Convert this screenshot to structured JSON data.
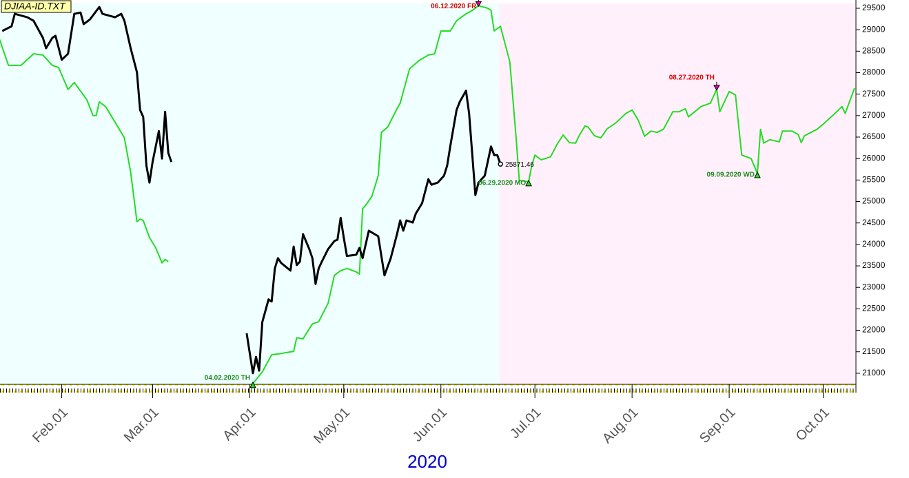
{
  "chart_data": {
    "type": "line",
    "title": "DJIAA-ID.TXT",
    "x_label": "2020",
    "xlim": [
      12.3,
      285
    ],
    "ylim": [
      20742,
      29692
    ],
    "xticks": [
      {
        "value": 32,
        "label": "Feb.01"
      },
      {
        "value": 61,
        "label": "Mar.01"
      },
      {
        "value": 92,
        "label": "Apr.01"
      },
      {
        "value": 122,
        "label": "May.01"
      },
      {
        "value": 153,
        "label": "Jun.01"
      },
      {
        "value": 183,
        "label": "Jul.01"
      },
      {
        "value": 214,
        "label": "Aug.01"
      },
      {
        "value": 245,
        "label": "Sep.01"
      },
      {
        "value": 275,
        "label": "Oct.01"
      }
    ],
    "yticks": [
      21000,
      21500,
      22000,
      22500,
      23000,
      23500,
      24000,
      24500,
      25000,
      25500,
      26000,
      26500,
      27000,
      27500,
      28000,
      28500,
      29000,
      29500
    ],
    "regions": [
      {
        "from": 12.3,
        "to": 171.6,
        "color": "#f0ffff"
      },
      {
        "from": 171.6,
        "to": 285,
        "color": "#fff0fb"
      }
    ],
    "series": [
      {
        "color": "#22dd22",
        "x": [
          12,
          15,
          19,
          23,
          26,
          29,
          31,
          34,
          36,
          40,
          42,
          43,
          44,
          46,
          50,
          52,
          54,
          56,
          57,
          58,
          60,
          62,
          64,
          65,
          66,
          80,
          93,
          96,
          99,
          102,
          106,
          107,
          109,
          112,
          114,
          117,
          119,
          121,
          123,
          126,
          127,
          128,
          129,
          131,
          133,
          134,
          136,
          139,
          140,
          143,
          146,
          149,
          151,
          153,
          156,
          158,
          161,
          163,
          165,
          168,
          169,
          170,
          172,
          175,
          177,
          178,
          181,
          182,
          183,
          185,
          188,
          190,
          192,
          194,
          196,
          197,
          199,
          200,
          202,
          204,
          206,
          209,
          212,
          214,
          216,
          218,
          220,
          222,
          224,
          227,
          229,
          231,
          232,
          234,
          236,
          239,
          241,
          242,
          245,
          247,
          249,
          252,
          254,
          255,
          256,
          258,
          261,
          262,
          265,
          267,
          268,
          269,
          273,
          275,
          278,
          281,
          282,
          285
        ],
        "values": [
          28810,
          28170,
          28170,
          28440,
          28410,
          28170,
          28120,
          27610,
          27770,
          27370,
          27000,
          27000,
          27320,
          27210,
          26730,
          26480,
          25680,
          24530,
          24590,
          24560,
          24160,
          23920,
          23570,
          23650,
          23600,
          null,
          20760,
          21030,
          21430,
          21460,
          21510,
          21830,
          21800,
          22150,
          22200,
          22630,
          23280,
          23390,
          23440,
          23360,
          23310,
          24830,
          24910,
          25120,
          25600,
          26610,
          26730,
          27160,
          27290,
          28090,
          28280,
          28410,
          28440,
          28970,
          28970,
          29210,
          29370,
          29450,
          29560,
          29500,
          29450,
          28970,
          29080,
          28250,
          26480,
          25490,
          25460,
          25840,
          26080,
          25970,
          26040,
          26320,
          26550,
          26370,
          26360,
          26520,
          26760,
          26730,
          26530,
          26480,
          26690,
          26840,
          27050,
          27130,
          26890,
          26520,
          26640,
          26610,
          26680,
          27090,
          27090,
          27160,
          26970,
          27090,
          27210,
          27290,
          27610,
          27090,
          27560,
          27480,
          26080,
          26000,
          25650,
          26680,
          26360,
          26440,
          26390,
          26640,
          26640,
          26560,
          26370,
          26530,
          26680,
          26800,
          27000,
          27210,
          27050,
          27640
        ]
      },
      {
        "color": "#000000",
        "x": [
          13,
          16,
          17,
          21,
          23,
          26,
          27,
          29,
          30,
          32,
          34,
          36,
          38,
          39,
          41,
          44,
          45,
          49,
          51,
          52,
          54,
          56,
          57,
          58,
          59,
          60,
          61,
          63,
          64,
          65,
          66,
          67,
          80,
          91,
          93,
          94,
          95,
          96,
          98,
          99,
          100,
          101,
          102,
          105,
          106,
          107,
          108,
          109,
          111,
          112,
          113,
          114,
          115,
          117,
          119,
          120,
          121,
          122,
          123,
          126,
          127,
          128,
          130,
          133,
          135,
          137,
          139,
          140,
          141,
          142,
          144,
          145,
          147,
          149,
          150,
          152,
          154,
          155,
          156,
          158,
          159,
          161,
          162,
          164,
          165,
          167,
          169,
          170,
          171,
          172
        ],
        "values": [
          28970,
          29080,
          29370,
          29290,
          29210,
          28810,
          28570,
          28810,
          28860,
          28300,
          28440,
          29370,
          29400,
          29130,
          29240,
          29530,
          29370,
          29290,
          29370,
          29210,
          28570,
          28010,
          27130,
          26970,
          25840,
          25440,
          25920,
          26640,
          26000,
          27090,
          26130,
          25920,
          null,
          21930,
          21000,
          21380,
          21060,
          22190,
          22720,
          22670,
          23440,
          23680,
          23570,
          23390,
          23950,
          23520,
          23600,
          24240,
          23890,
          23680,
          23080,
          23440,
          23600,
          23890,
          24080,
          24110,
          24620,
          24160,
          23730,
          23760,
          23920,
          23680,
          24320,
          24190,
          23280,
          23680,
          24240,
          24560,
          24320,
          24560,
          24510,
          24720,
          24960,
          25520,
          25390,
          25440,
          25600,
          25840,
          26290,
          27130,
          27320,
          27580,
          27050,
          25150,
          25440,
          25600,
          26280,
          26080,
          26080,
          25871.46
        ]
      }
    ],
    "annotations": [
      {
        "label": "06.12.2020 FR",
        "x": 165,
        "value": 29560,
        "color": "#dd0000",
        "direction": "down"
      },
      {
        "label": "08.27.2020 TH",
        "x": 241,
        "value": 27610,
        "color": "#dd0000",
        "direction": "down"
      },
      {
        "label": "04.02.2020 TH",
        "x": 93,
        "value": 20760,
        "color": "#1a8a1a",
        "direction": "up"
      },
      {
        "label": "06.29.2020 MO",
        "x": 181,
        "value": 25460,
        "color": "#1a8a1a",
        "direction": "up"
      },
      {
        "label": "09.09.2020 WD",
        "x": 254,
        "value": 25650,
        "color": "#1a8a1a",
        "direction": "up"
      }
    ]
  }
}
